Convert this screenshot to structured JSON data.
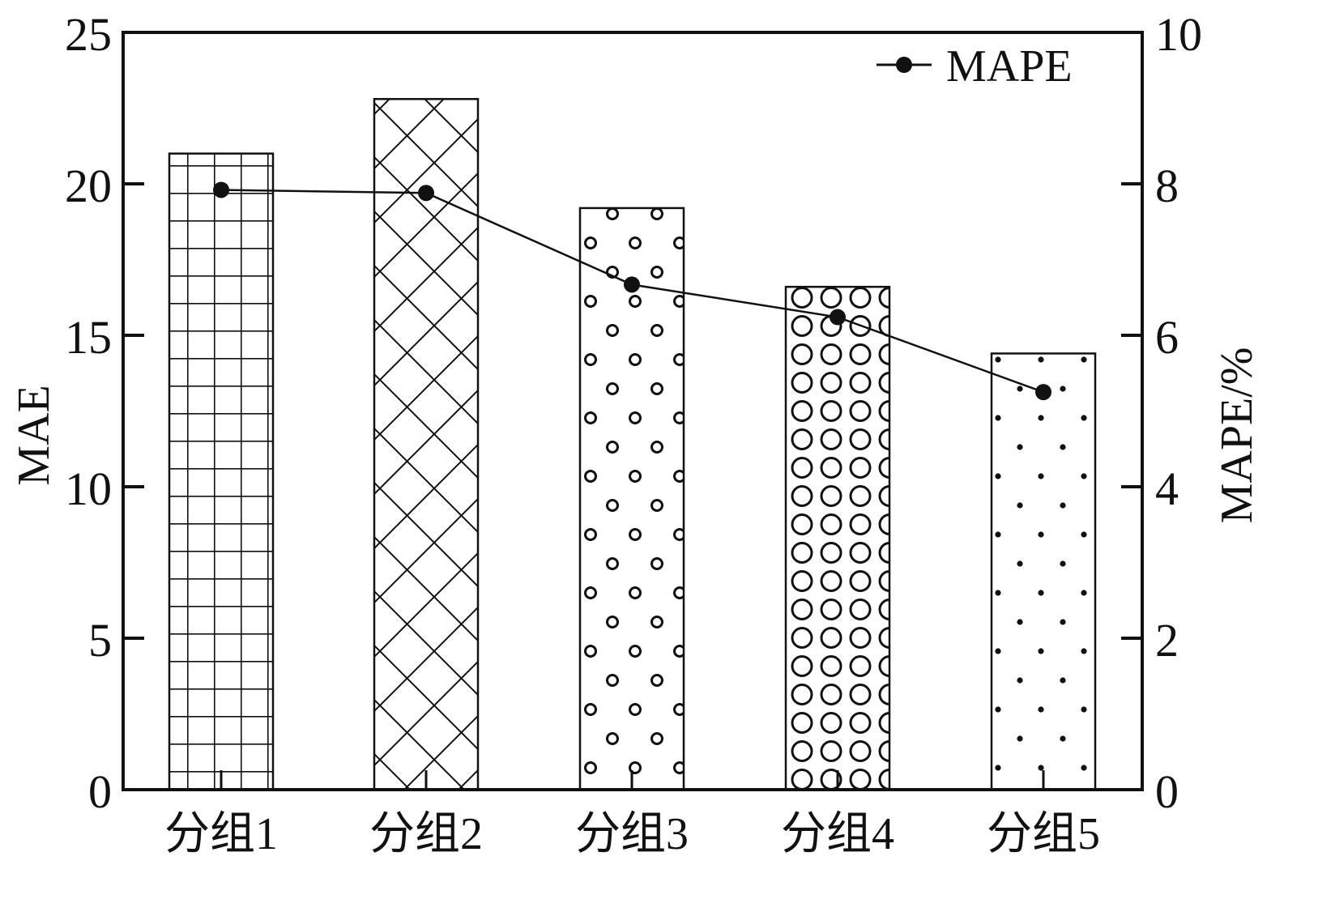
{
  "chart_data": {
    "type": "bar",
    "categories": [
      "分组1",
      "分组2",
      "分组3",
      "分组4",
      "分组5"
    ],
    "series": [
      {
        "axis": "left",
        "type": "bar",
        "values": [
          21.0,
          22.8,
          19.2,
          16.6,
          14.4
        ]
      },
      {
        "name": "MAPE",
        "axis": "right",
        "type": "line",
        "values": [
          7.92,
          7.88,
          6.67,
          6.24,
          5.25
        ]
      }
    ],
    "ylabel": "MAE",
    "ylabel_right": "MAPE/%",
    "ylim": [
      0,
      25
    ],
    "ylim_right": [
      0,
      10
    ],
    "yticks": [
      0,
      5,
      10,
      15,
      20,
      25
    ],
    "yticks_right": [
      0,
      2,
      4,
      6,
      8,
      10
    ],
    "legend": {
      "position": "top-right",
      "entries": [
        "MAPE"
      ]
    },
    "bar_patterns": [
      "grid",
      "diamond-crosshatch",
      "small-circles",
      "large-circles",
      "dots"
    ],
    "grid": false,
    "colors": {
      "axis": "#111111",
      "bar_fill": "#ffffff",
      "pattern": "#111111",
      "line": "#111111"
    }
  }
}
